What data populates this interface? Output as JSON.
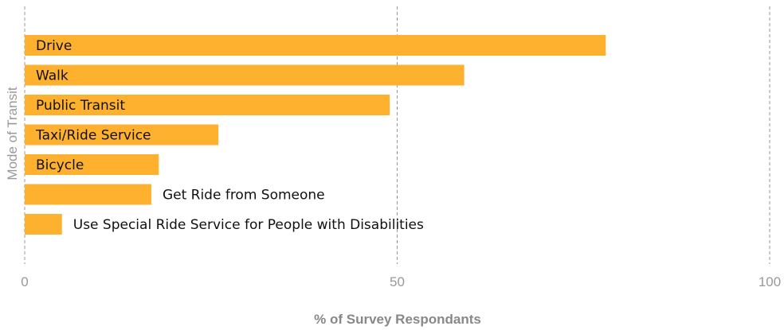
{
  "chart_data": {
    "type": "bar",
    "orientation": "horizontal",
    "categories": [
      "Drive",
      "Walk",
      "Public Transit",
      "Taxi/Ride Service",
      "Bicycle",
      "Get Ride from Someone",
      "Use Special Ride Service for People with Disabilities"
    ],
    "values": [
      78,
      59,
      49,
      26,
      18,
      17,
      5
    ],
    "xlabel": "% of Survey Respondants",
    "ylabel": "Mode of Transit",
    "xlim": [
      0,
      100
    ],
    "xticks": [
      0,
      50,
      100
    ],
    "grid": true,
    "bar_color": "#FEB12E"
  }
}
